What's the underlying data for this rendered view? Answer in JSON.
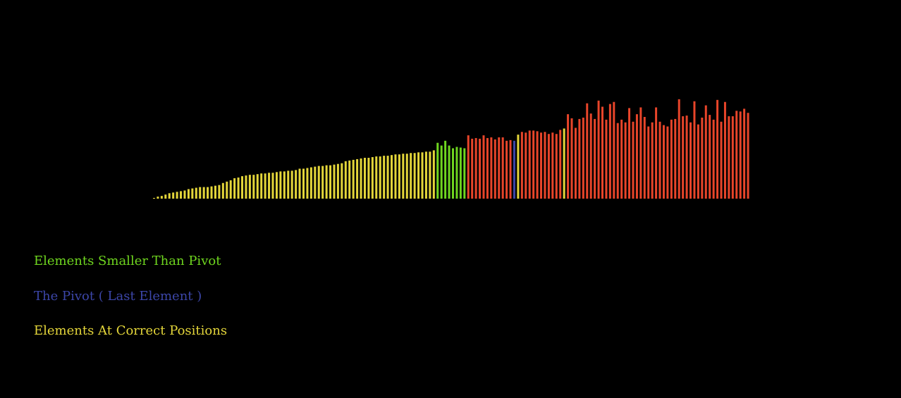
{
  "colors": {
    "background": "#000000",
    "smaller": "#6fd61f",
    "pivot": "#3c46a8",
    "correct": "#e4d63a",
    "unsorted": "#e8452a"
  },
  "legend": {
    "smaller": "Elements Smaller Than Pivot",
    "pivot": "The Pivot ( Last Element )",
    "correct": "Elements At Correct Positions"
  },
  "chart_data": {
    "type": "bar",
    "ylim": [
      0,
      150
    ],
    "categories_note": "",
    "bars": [
      {
        "v": 1,
        "s": "correct"
      },
      {
        "v": 3,
        "s": "correct"
      },
      {
        "v": 4,
        "s": "correct"
      },
      {
        "v": 6,
        "s": "correct"
      },
      {
        "v": 8,
        "s": "correct"
      },
      {
        "v": 9,
        "s": "correct"
      },
      {
        "v": 10,
        "s": "correct"
      },
      {
        "v": 11,
        "s": "correct"
      },
      {
        "v": 12,
        "s": "correct"
      },
      {
        "v": 14,
        "s": "correct"
      },
      {
        "v": 15,
        "s": "correct"
      },
      {
        "v": 16,
        "s": "correct"
      },
      {
        "v": 17,
        "s": "correct"
      },
      {
        "v": 17,
        "s": "correct"
      },
      {
        "v": 17,
        "s": "correct"
      },
      {
        "v": 18,
        "s": "correct"
      },
      {
        "v": 19,
        "s": "correct"
      },
      {
        "v": 20,
        "s": "correct"
      },
      {
        "v": 23,
        "s": "correct"
      },
      {
        "v": 25,
        "s": "correct"
      },
      {
        "v": 27,
        "s": "correct"
      },
      {
        "v": 30,
        "s": "correct"
      },
      {
        "v": 31,
        "s": "correct"
      },
      {
        "v": 33,
        "s": "correct"
      },
      {
        "v": 34,
        "s": "correct"
      },
      {
        "v": 35,
        "s": "correct"
      },
      {
        "v": 35,
        "s": "correct"
      },
      {
        "v": 36,
        "s": "correct"
      },
      {
        "v": 37,
        "s": "correct"
      },
      {
        "v": 37,
        "s": "correct"
      },
      {
        "v": 38,
        "s": "correct"
      },
      {
        "v": 38,
        "s": "correct"
      },
      {
        "v": 39,
        "s": "correct"
      },
      {
        "v": 40,
        "s": "correct"
      },
      {
        "v": 40,
        "s": "correct"
      },
      {
        "v": 41,
        "s": "correct"
      },
      {
        "v": 41,
        "s": "correct"
      },
      {
        "v": 42,
        "s": "correct"
      },
      {
        "v": 44,
        "s": "correct"
      },
      {
        "v": 44,
        "s": "correct"
      },
      {
        "v": 45,
        "s": "correct"
      },
      {
        "v": 46,
        "s": "correct"
      },
      {
        "v": 47,
        "s": "correct"
      },
      {
        "v": 48,
        "s": "correct"
      },
      {
        "v": 48,
        "s": "correct"
      },
      {
        "v": 49,
        "s": "correct"
      },
      {
        "v": 49,
        "s": "correct"
      },
      {
        "v": 50,
        "s": "correct"
      },
      {
        "v": 51,
        "s": "correct"
      },
      {
        "v": 52,
        "s": "correct"
      },
      {
        "v": 55,
        "s": "correct"
      },
      {
        "v": 56,
        "s": "correct"
      },
      {
        "v": 57,
        "s": "correct"
      },
      {
        "v": 58,
        "s": "correct"
      },
      {
        "v": 59,
        "s": "correct"
      },
      {
        "v": 60,
        "s": "correct"
      },
      {
        "v": 60,
        "s": "correct"
      },
      {
        "v": 61,
        "s": "correct"
      },
      {
        "v": 62,
        "s": "correct"
      },
      {
        "v": 62,
        "s": "correct"
      },
      {
        "v": 63,
        "s": "correct"
      },
      {
        "v": 63,
        "s": "correct"
      },
      {
        "v": 64,
        "s": "correct"
      },
      {
        "v": 65,
        "s": "correct"
      },
      {
        "v": 65,
        "s": "correct"
      },
      {
        "v": 66,
        "s": "correct"
      },
      {
        "v": 66,
        "s": "correct"
      },
      {
        "v": 67,
        "s": "correct"
      },
      {
        "v": 67,
        "s": "correct"
      },
      {
        "v": 68,
        "s": "correct"
      },
      {
        "v": 68,
        "s": "correct"
      },
      {
        "v": 69,
        "s": "correct"
      },
      {
        "v": 69,
        "s": "correct"
      },
      {
        "v": 71,
        "s": "correct"
      },
      {
        "v": 82,
        "s": "smaller"
      },
      {
        "v": 78,
        "s": "smaller"
      },
      {
        "v": 85,
        "s": "smaller"
      },
      {
        "v": 78,
        "s": "smaller"
      },
      {
        "v": 74,
        "s": "smaller"
      },
      {
        "v": 76,
        "s": "smaller"
      },
      {
        "v": 75,
        "s": "smaller"
      },
      {
        "v": 74,
        "s": "smaller"
      },
      {
        "v": 93,
        "s": "unsorted"
      },
      {
        "v": 88,
        "s": "unsorted"
      },
      {
        "v": 89,
        "s": "unsorted"
      },
      {
        "v": 88,
        "s": "unsorted"
      },
      {
        "v": 93,
        "s": "unsorted"
      },
      {
        "v": 89,
        "s": "unsorted"
      },
      {
        "v": 90,
        "s": "unsorted"
      },
      {
        "v": 87,
        "s": "unsorted"
      },
      {
        "v": 90,
        "s": "unsorted"
      },
      {
        "v": 90,
        "s": "unsorted"
      },
      {
        "v": 85,
        "s": "unsorted"
      },
      {
        "v": 86,
        "s": "unsorted"
      },
      {
        "v": 85,
        "s": "pivot"
      },
      {
        "v": 94,
        "s": "correct"
      },
      {
        "v": 98,
        "s": "unsorted"
      },
      {
        "v": 97,
        "s": "unsorted"
      },
      {
        "v": 100,
        "s": "unsorted"
      },
      {
        "v": 100,
        "s": "unsorted"
      },
      {
        "v": 99,
        "s": "unsorted"
      },
      {
        "v": 97,
        "s": "unsorted"
      },
      {
        "v": 98,
        "s": "unsorted"
      },
      {
        "v": 95,
        "s": "unsorted"
      },
      {
        "v": 97,
        "s": "unsorted"
      },
      {
        "v": 95,
        "s": "unsorted"
      },
      {
        "v": 101,
        "s": "unsorted"
      },
      {
        "v": 103,
        "s": "correct"
      },
      {
        "v": 124,
        "s": "unsorted"
      },
      {
        "v": 118,
        "s": "unsorted"
      },
      {
        "v": 104,
        "s": "unsorted"
      },
      {
        "v": 117,
        "s": "unsorted"
      },
      {
        "v": 119,
        "s": "unsorted"
      },
      {
        "v": 140,
        "s": "unsorted"
      },
      {
        "v": 125,
        "s": "unsorted"
      },
      {
        "v": 117,
        "s": "unsorted"
      },
      {
        "v": 144,
        "s": "unsorted"
      },
      {
        "v": 135,
        "s": "unsorted"
      },
      {
        "v": 116,
        "s": "unsorted"
      },
      {
        "v": 139,
        "s": "unsorted"
      },
      {
        "v": 142,
        "s": "unsorted"
      },
      {
        "v": 111,
        "s": "unsorted"
      },
      {
        "v": 116,
        "s": "unsorted"
      },
      {
        "v": 112,
        "s": "unsorted"
      },
      {
        "v": 133,
        "s": "unsorted"
      },
      {
        "v": 113,
        "s": "unsorted"
      },
      {
        "v": 124,
        "s": "unsorted"
      },
      {
        "v": 134,
        "s": "unsorted"
      },
      {
        "v": 120,
        "s": "unsorted"
      },
      {
        "v": 106,
        "s": "unsorted"
      },
      {
        "v": 112,
        "s": "unsorted"
      },
      {
        "v": 134,
        "s": "unsorted"
      },
      {
        "v": 113,
        "s": "unsorted"
      },
      {
        "v": 108,
        "s": "unsorted"
      },
      {
        "v": 106,
        "s": "unsorted"
      },
      {
        "v": 116,
        "s": "unsorted"
      },
      {
        "v": 117,
        "s": "unsorted"
      },
      {
        "v": 146,
        "s": "unsorted"
      },
      {
        "v": 121,
        "s": "unsorted"
      },
      {
        "v": 122,
        "s": "unsorted"
      },
      {
        "v": 112,
        "s": "unsorted"
      },
      {
        "v": 143,
        "s": "unsorted"
      },
      {
        "v": 109,
        "s": "unsorted"
      },
      {
        "v": 119,
        "s": "unsorted"
      },
      {
        "v": 137,
        "s": "unsorted"
      },
      {
        "v": 123,
        "s": "unsorted"
      },
      {
        "v": 116,
        "s": "unsorted"
      },
      {
        "v": 145,
        "s": "unsorted"
      },
      {
        "v": 113,
        "s": "unsorted"
      },
      {
        "v": 142,
        "s": "unsorted"
      },
      {
        "v": 121,
        "s": "unsorted"
      },
      {
        "v": 121,
        "s": "unsorted"
      },
      {
        "v": 129,
        "s": "unsorted"
      },
      {
        "v": 128,
        "s": "unsorted"
      },
      {
        "v": 132,
        "s": "unsorted"
      },
      {
        "v": 126,
        "s": "unsorted"
      }
    ]
  }
}
